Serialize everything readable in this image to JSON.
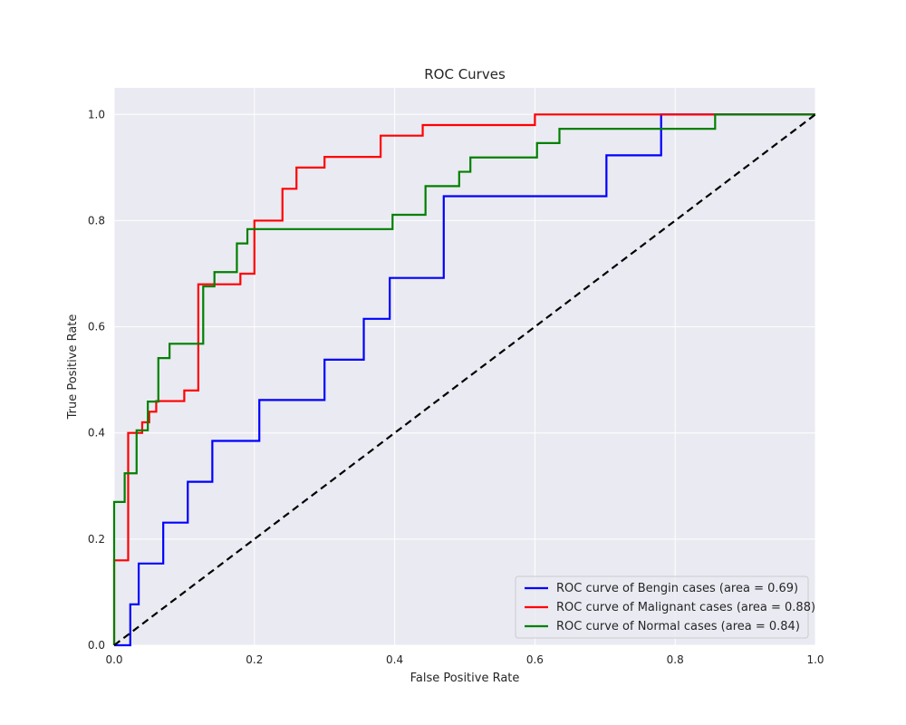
{
  "chart_data": {
    "type": "line",
    "title": "ROC Curves",
    "xlabel": "False Positive Rate",
    "ylabel": "True Positive Rate",
    "xlim": [
      0.0,
      1.0
    ],
    "ylim": [
      0.0,
      1.05
    ],
    "xticks": [
      "0.0",
      "0.2",
      "0.4",
      "0.6",
      "0.8",
      "1.0"
    ],
    "yticks": [
      "0.0",
      "0.2",
      "0.4",
      "0.6",
      "0.8",
      "1.0"
    ],
    "grid": true,
    "legend_position": "lower-right",
    "background": "#eaeaf2",
    "series": [
      {
        "name": "ROC curve of Bengin cases (area = 0.69)",
        "color": "#0000ff",
        "x": [
          0.0,
          0.023,
          0.023,
          0.035,
          0.035,
          0.07,
          0.07,
          0.105,
          0.105,
          0.14,
          0.14,
          0.207,
          0.207,
          0.3,
          0.3,
          0.356,
          0.356,
          0.393,
          0.393,
          0.47,
          0.47,
          0.702,
          0.702,
          0.78,
          0.78,
          1.0
        ],
        "y": [
          0.0,
          0.0,
          0.077,
          0.077,
          0.154,
          0.154,
          0.231,
          0.231,
          0.308,
          0.308,
          0.385,
          0.385,
          0.462,
          0.462,
          0.538,
          0.538,
          0.615,
          0.615,
          0.692,
          0.692,
          0.846,
          0.846,
          0.923,
          0.923,
          1.0,
          1.0
        ]
      },
      {
        "name": "ROC curve of Malignant cases (area = 0.88)",
        "color": "#ff0000",
        "x": [
          0.0,
          0.0,
          0.02,
          0.02,
          0.04,
          0.04,
          0.05,
          0.05,
          0.06,
          0.06,
          0.1,
          0.1,
          0.12,
          0.12,
          0.18,
          0.18,
          0.2,
          0.2,
          0.24,
          0.24,
          0.26,
          0.26,
          0.3,
          0.3,
          0.38,
          0.38,
          0.44,
          0.44,
          0.6,
          0.6,
          0.86,
          1.0
        ],
        "y": [
          0.0,
          0.16,
          0.16,
          0.4,
          0.4,
          0.42,
          0.42,
          0.44,
          0.44,
          0.46,
          0.46,
          0.48,
          0.48,
          0.68,
          0.68,
          0.7,
          0.7,
          0.8,
          0.8,
          0.86,
          0.86,
          0.9,
          0.9,
          0.92,
          0.92,
          0.96,
          0.96,
          0.98,
          0.98,
          1.0,
          1.0,
          1.0
        ]
      },
      {
        "name": "ROC curve of Normal cases (area = 0.84)",
        "color": "#008000",
        "x": [
          0.0,
          0.0,
          0.015,
          0.015,
          0.032,
          0.032,
          0.048,
          0.048,
          0.063,
          0.063,
          0.079,
          0.079,
          0.127,
          0.127,
          0.143,
          0.143,
          0.175,
          0.175,
          0.19,
          0.19,
          0.397,
          0.397,
          0.444,
          0.444,
          0.492,
          0.492,
          0.508,
          0.508,
          0.603,
          0.603,
          0.635,
          0.635,
          0.857,
          0.857,
          1.0
        ],
        "y": [
          0.0,
          0.27,
          0.27,
          0.324,
          0.324,
          0.405,
          0.405,
          0.459,
          0.459,
          0.541,
          0.541,
          0.568,
          0.568,
          0.676,
          0.676,
          0.703,
          0.703,
          0.757,
          0.757,
          0.784,
          0.784,
          0.811,
          0.811,
          0.865,
          0.865,
          0.892,
          0.892,
          0.919,
          0.919,
          0.946,
          0.946,
          0.973,
          0.973,
          1.0,
          1.0
        ]
      }
    ],
    "reference_line": {
      "x": [
        0.0,
        1.0
      ],
      "y": [
        0.0,
        1.0
      ],
      "color": "#000000",
      "style": "dashed"
    }
  }
}
